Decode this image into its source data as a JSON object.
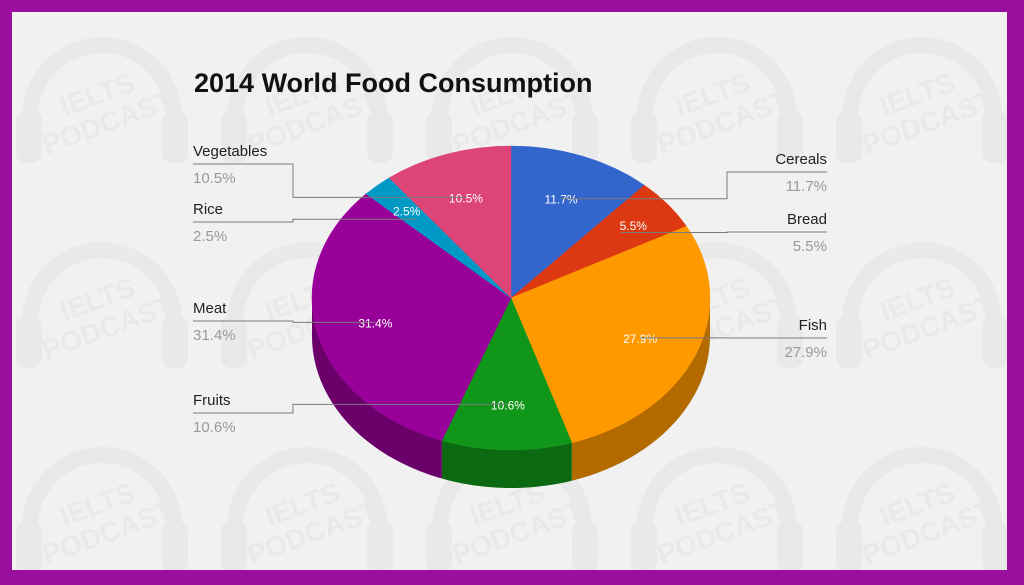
{
  "watermark_text": [
    "IELTS",
    "PODCAST"
  ],
  "chart_data": {
    "type": "pie",
    "title": "2014 World Food Consumption",
    "legend": "labels-outside",
    "slices": [
      {
        "label": "Cereals",
        "value": 11.7,
        "display": "11.7%",
        "color": "#3366cc"
      },
      {
        "label": "Bread",
        "value": 5.5,
        "display": "5.5%",
        "color": "#dc3912"
      },
      {
        "label": "Fish",
        "value": 27.9,
        "display": "27.9%",
        "color": "#ff9900"
      },
      {
        "label": "Fruits",
        "value": 10.6,
        "display": "10.6%",
        "color": "#109618"
      },
      {
        "label": "Meat",
        "value": 31.4,
        "display": "31.4%",
        "color": "#990099"
      },
      {
        "label": "Rice",
        "value": 2.5,
        "display": "2.5%",
        "color": "#0099c6"
      },
      {
        "label": "Vegetables",
        "value": 10.5,
        "display": "10.5%",
        "color": "#dd4477"
      }
    ]
  }
}
